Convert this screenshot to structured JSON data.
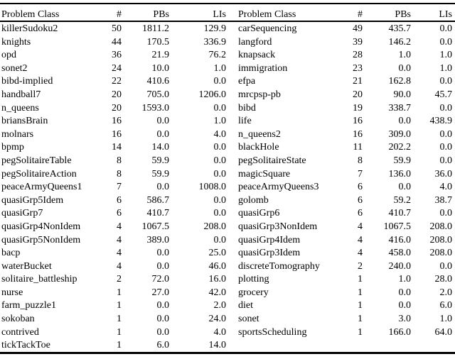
{
  "page": {
    "background": "#ffffff",
    "text_color": "#000000",
    "rule_color": "#000000"
  },
  "table": {
    "headers": {
      "problem_class": "Problem Class",
      "count": "#",
      "pbs": "PBs",
      "lis": "LIs"
    },
    "left_rows": [
      [
        "killerSudoku2",
        "50",
        "1811.2",
        "129.9"
      ],
      [
        "knights",
        "44",
        "170.5",
        "336.9"
      ],
      [
        "opd",
        "36",
        "21.9",
        "76.2"
      ],
      [
        "sonet2",
        "24",
        "10.0",
        "1.0"
      ],
      [
        "bibd-implied",
        "22",
        "410.6",
        "0.0"
      ],
      [
        "handball7",
        "20",
        "705.0",
        "1206.0"
      ],
      [
        "n_queens",
        "20",
        "1593.0",
        "0.0"
      ],
      [
        "briansBrain",
        "16",
        "0.0",
        "1.0"
      ],
      [
        "molnars",
        "16",
        "0.0",
        "4.0"
      ],
      [
        "bpmp",
        "14",
        "14.0",
        "0.0"
      ],
      [
        "pegSolitaireTable",
        "8",
        "59.9",
        "0.0"
      ],
      [
        "pegSolitaireAction",
        "8",
        "59.9",
        "0.0"
      ],
      [
        "peaceArmyQueens1",
        "7",
        "0.0",
        "1008.0"
      ],
      [
        "quasiGrp5Idem",
        "6",
        "586.7",
        "0.0"
      ],
      [
        "quasiGrp7",
        "6",
        "410.7",
        "0.0"
      ],
      [
        "quasiGrp4NonIdem",
        "4",
        "1067.5",
        "208.0"
      ],
      [
        "quasiGrp5NonIdem",
        "4",
        "389.0",
        "0.0"
      ],
      [
        "bacp",
        "4",
        "0.0",
        "25.0"
      ],
      [
        "waterBucket",
        "4",
        "0.0",
        "46.0"
      ],
      [
        "solitaire_battleship",
        "2",
        "72.0",
        "16.0"
      ],
      [
        "nurse",
        "1",
        "27.0",
        "42.0"
      ],
      [
        "farm_puzzle1",
        "1",
        "0.0",
        "2.0"
      ],
      [
        "sokoban",
        "1",
        "0.0",
        "24.0"
      ],
      [
        "contrived",
        "1",
        "0.0",
        "4.0"
      ],
      [
        "tickTackToe",
        "1",
        "6.0",
        "14.0"
      ]
    ],
    "right_rows": [
      [
        "carSequencing",
        "49",
        "435.7",
        "0.0"
      ],
      [
        "langford",
        "39",
        "146.2",
        "0.0"
      ],
      [
        "knapsack",
        "28",
        "1.0",
        "1.0"
      ],
      [
        "immigration",
        "23",
        "0.0",
        "1.0"
      ],
      [
        "efpa",
        "21",
        "162.8",
        "0.0"
      ],
      [
        "mrcpsp-pb",
        "20",
        "90.0",
        "45.7"
      ],
      [
        "bibd",
        "19",
        "338.7",
        "0.0"
      ],
      [
        "life",
        "16",
        "0.0",
        "438.9"
      ],
      [
        "n_queens2",
        "16",
        "309.0",
        "0.0"
      ],
      [
        "blackHole",
        "11",
        "202.2",
        "0.0"
      ],
      [
        "pegSolitaireState",
        "8",
        "59.9",
        "0.0"
      ],
      [
        "magicSquare",
        "7",
        "136.0",
        "36.0"
      ],
      [
        "peaceArmyQueens3",
        "6",
        "0.0",
        "4.0"
      ],
      [
        "golomb",
        "6",
        "59.2",
        "38.7"
      ],
      [
        "quasiGrp6",
        "6",
        "410.7",
        "0.0"
      ],
      [
        "quasiGrp3NonIdem",
        "4",
        "1067.5",
        "208.0"
      ],
      [
        "quasiGrp4Idem",
        "4",
        "416.0",
        "208.0"
      ],
      [
        "quasiGrp3Idem",
        "4",
        "458.0",
        "208.0"
      ],
      [
        "discreteTomography",
        "2",
        "240.0",
        "0.0"
      ],
      [
        "plotting",
        "1",
        "1.0",
        "28.0"
      ],
      [
        "grocery",
        "1",
        "0.0",
        "2.0"
      ],
      [
        "diet",
        "1",
        "0.0",
        "6.0"
      ],
      [
        "sonet",
        "1",
        "3.0",
        "1.0"
      ],
      [
        "sportsScheduling",
        "1",
        "166.0",
        "64.0"
      ]
    ]
  }
}
